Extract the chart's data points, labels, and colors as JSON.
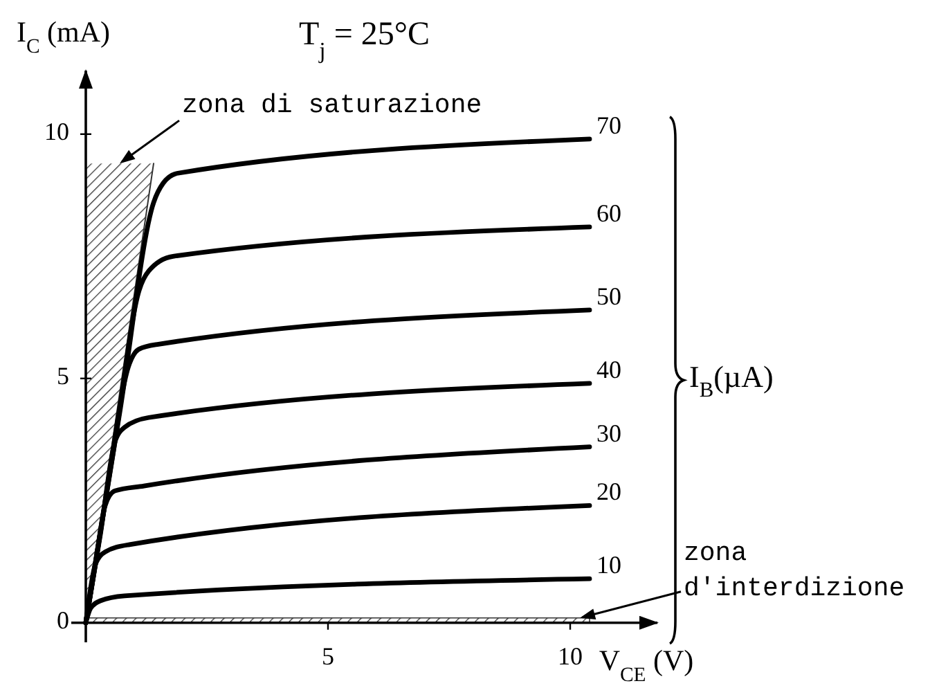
{
  "chart_data": {
    "type": "line",
    "title": "T$_{j}$ = 25°C",
    "xlabel": "V$_{CE}$ (V)",
    "ylabel": "I$_{C}$ (mA)",
    "legend_title": "I$_{B}$(µA)",
    "annotations": [
      {
        "text": "zona di saturazione",
        "x": 0.7,
        "y": 9.4
      },
      {
        "text": "zona d'interdizione",
        "x": 10.2,
        "y": 0.1
      }
    ],
    "xlim": [
      -0.3,
      11.8
    ],
    "ylim": [
      -0.4,
      11.3
    ],
    "xticks": [
      5,
      10
    ],
    "yticks": [
      0,
      5,
      10
    ],
    "series": [
      {
        "type": "line",
        "color": "#333333",
        "x": [
          0,
          0.7,
          1.4
        ],
        "values": [
          0,
          4.7,
          9.4
        ],
        "lower": [
          0,
          4.7,
          9.4
        ],
        "upper": [
          9.4,
          9.4,
          9.4
        ]
      },
      {
        "type": "area",
        "color": "#333333",
        "x": [
          0,
          10.4
        ],
        "values": [
          0.1,
          0.1
        ]
      },
      {
        "name": "10",
        "color": "#000000",
        "x": [
          0,
          0.1,
          0.3,
          0.8,
          10.4
        ],
        "values": [
          0,
          0.3,
          0.45,
          0.55,
          0.9
        ]
      },
      {
        "name": "20",
        "color": "#000000",
        "x": [
          0,
          0.2,
          0.4,
          0.9,
          10.4
        ],
        "values": [
          0,
          1.2,
          1.45,
          1.6,
          2.4
        ]
      },
      {
        "name": "30",
        "color": "#000000",
        "x": [
          0,
          0.2,
          0.4,
          0.6,
          1.2,
          10.4
        ],
        "values": [
          0,
          1.2,
          2.4,
          2.7,
          2.8,
          3.6
        ]
      },
      {
        "name": "40",
        "color": "#000000",
        "x": [
          0,
          0.3,
          0.6,
          0.8,
          1.3,
          10.4
        ],
        "values": [
          0,
          1.8,
          3.7,
          4.0,
          4.2,
          4.9
        ]
      },
      {
        "name": "50",
        "color": "#000000",
        "x": [
          0,
          0.4,
          0.9,
          1.1,
          1.5,
          10.4
        ],
        "values": [
          0,
          2.5,
          5.3,
          5.6,
          5.7,
          6.4
        ]
      },
      {
        "name": "60",
        "color": "#000000",
        "x": [
          0,
          0.6,
          1.1,
          1.3,
          1.8,
          10.4
        ],
        "values": [
          0,
          3.7,
          6.8,
          7.2,
          7.5,
          8.1
        ]
      },
      {
        "name": "70",
        "color": "#000000",
        "x": [
          0,
          0.7,
          1.4,
          1.6,
          1.9,
          10.4
        ],
        "values": [
          0,
          4.3,
          8.6,
          9.0,
          9.2,
          9.9
        ]
      }
    ]
  }
}
